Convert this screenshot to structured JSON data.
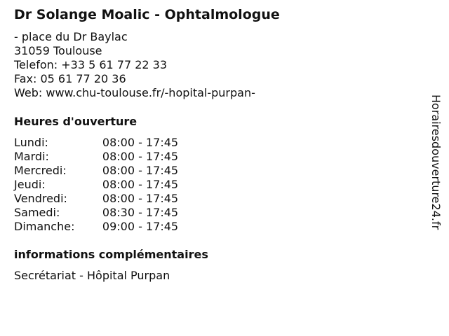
{
  "title": "Dr Solange Moalic - Ophtalmologue",
  "address": [
    "- place du Dr Baylac",
    "31059 Toulouse",
    "Telefon: +33 5 61 77 22 33",
    "Fax: 05 61 77 20 36",
    "Web: www.chu-toulouse.fr/-hopital-purpan-"
  ],
  "hours_heading": "Heures d'ouverture",
  "hours": [
    {
      "day": "Lundi:",
      "time": "08:00 - 17:45"
    },
    {
      "day": "Mardi:",
      "time": "08:00 - 17:45"
    },
    {
      "day": "Mercredi:",
      "time": "08:00 - 17:45"
    },
    {
      "day": "Jeudi:",
      "time": "08:00 - 17:45"
    },
    {
      "day": "Vendredi:",
      "time": "08:00 - 17:45"
    },
    {
      "day": "Samedi:",
      "time": "08:30 - 17:45"
    },
    {
      "day": "Dimanche:",
      "time": "09:00 - 17:45"
    }
  ],
  "extra_heading": "informations complémentaires",
  "extra_text": "Secrétariat - Hôpital Purpan",
  "watermark": "Horairesdouverture24.fr"
}
